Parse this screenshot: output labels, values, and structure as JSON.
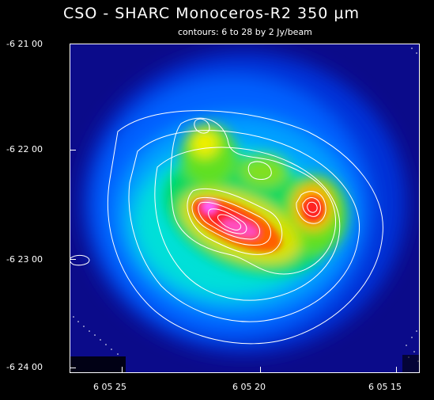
{
  "title": "CSO - SHARC  Monoceros-R2  350 μm",
  "subtitle": "contours: 6 to 28 by 2 Jy/beam",
  "axes": {
    "y_labels": [
      "-6 21 00",
      "-6 22 00",
      "-6 23 00",
      "-6 24 00"
    ],
    "x_labels": [
      "6 05 25",
      "6 05 20",
      "6 05 15"
    ]
  },
  "colors": {
    "background": "#000000",
    "contour": "#ffffff",
    "low": "#00008b",
    "mid": "#00d050",
    "high": "#ff2020",
    "peak": "#ff60ff"
  }
}
